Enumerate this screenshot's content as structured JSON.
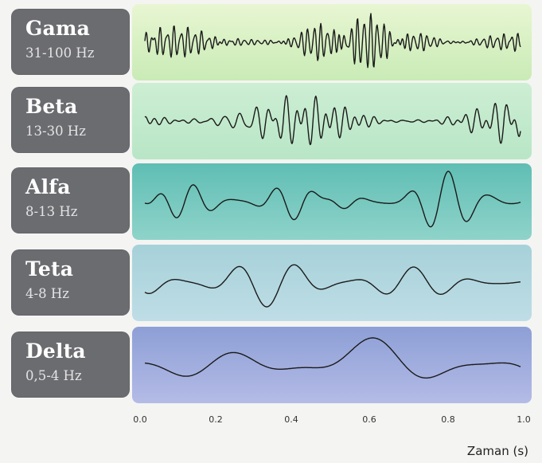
{
  "bands": [
    {
      "name": "Gama",
      "range": "31-100 Hz",
      "color_top": "#e8f6d2",
      "color_bottom": "#c9ebb6",
      "freq": 62,
      "amp": 0.9
    },
    {
      "name": "Beta",
      "range": "13-30 Hz",
      "color_top": "#cdeed3",
      "color_bottom": "#b8e6c6",
      "freq": 32,
      "amp": 0.8
    },
    {
      "name": "Alfa",
      "range": "8-13 Hz",
      "color_top": "#5fbeb4",
      "color_bottom": "#8fd3ca",
      "freq": 11,
      "amp": 0.95
    },
    {
      "name": "Teta",
      "range": "4-8 Hz",
      "color_top": "#a6d1d9",
      "color_bottom": "#bfdde6",
      "freq": 6,
      "amp": 0.75
    },
    {
      "name": "Delta",
      "range": "0,5-4 Hz",
      "color_top": "#8d9fd6",
      "color_bottom": "#b4bbe6",
      "freq": 2.2,
      "amp": 0.85
    }
  ],
  "axis": {
    "ticks": [
      "0.0",
      "0.2",
      "0.4",
      "0.6",
      "0.8",
      "1.0"
    ],
    "xlabel": "Zaman (s)"
  }
}
